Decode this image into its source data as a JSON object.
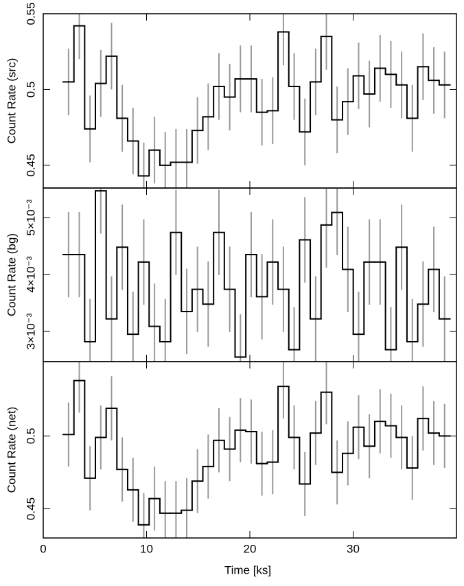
{
  "chart_data": [
    {
      "type": "step",
      "ylabel": "Count Rate (src)",
      "color": "#000000",
      "error_color": "#999999",
      "x": [
        2.45,
        3.49,
        4.53,
        5.57,
        6.61,
        7.65,
        8.69,
        9.73,
        10.77,
        11.81,
        12.85,
        13.89,
        14.93,
        15.97,
        17.01,
        18.05,
        19.09,
        20.13,
        21.17,
        22.21,
        23.25,
        24.29,
        25.33,
        26.37,
        27.41,
        28.45,
        29.49,
        30.53,
        31.57,
        32.61,
        33.65,
        34.69,
        35.73,
        36.77,
        37.81,
        38.85
      ],
      "values": [
        0.505,
        0.542,
        0.474,
        0.504,
        0.522,
        0.481,
        0.466,
        0.443,
        0.46,
        0.45,
        0.452,
        0.452,
        0.473,
        0.482,
        0.502,
        0.495,
        0.507,
        0.507,
        0.485,
        0.486,
        0.538,
        0.502,
        0.472,
        0.505,
        0.535,
        0.48,
        0.492,
        0.509,
        0.497,
        0.514,
        0.51,
        0.503,
        0.481,
        0.515,
        0.506,
        0.503
      ],
      "errors": [
        0.022,
        0.022,
        0.022,
        0.022,
        0.022,
        0.022,
        0.022,
        0.022,
        0.022,
        0.022,
        0.022,
        0.022,
        0.022,
        0.022,
        0.022,
        0.022,
        0.022,
        0.022,
        0.022,
        0.022,
        0.022,
        0.022,
        0.022,
        0.022,
        0.022,
        0.022,
        0.022,
        0.022,
        0.022,
        0.022,
        0.022,
        0.022,
        0.022,
        0.022,
        0.022,
        0.022
      ],
      "xlim": [
        0,
        40
      ],
      "xticks": [
        0,
        10,
        20,
        30
      ],
      "ylim": [
        0.435,
        0.55
      ],
      "yticks": [
        0.45,
        0.5,
        0.55
      ]
    },
    {
      "type": "step",
      "ylabel": "Count Rate (bg)",
      "color": "#000000",
      "error_color": "#999999",
      "x": [
        2.45,
        3.49,
        4.53,
        5.57,
        6.61,
        7.65,
        8.69,
        9.73,
        10.77,
        11.81,
        12.85,
        13.89,
        14.93,
        15.97,
        17.01,
        18.05,
        19.09,
        20.13,
        21.17,
        22.21,
        23.25,
        24.29,
        25.33,
        26.37,
        27.41,
        28.45,
        29.49,
        30.53,
        31.57,
        32.61,
        33.65,
        34.69,
        35.73,
        36.77,
        37.81,
        38.85
      ],
      "values": [
        0.00435,
        0.00435,
        0.00282,
        0.00547,
        0.00322,
        0.00448,
        0.00295,
        0.00422,
        0.00309,
        0.00282,
        0.00474,
        0.00335,
        0.00374,
        0.00348,
        0.00474,
        0.00374,
        0.00255,
        0.00435,
        0.00361,
        0.00422,
        0.00374,
        0.00268,
        0.00461,
        0.00322,
        0.00487,
        0.00509,
        0.00409,
        0.00295,
        0.00422,
        0.00422,
        0.00268,
        0.00448,
        0.00282,
        0.00348,
        0.00409,
        0.00322
      ],
      "errors": [
        0.00075,
        0.00075,
        0.00075,
        0.00075,
        0.00075,
        0.00075,
        0.00075,
        0.00075,
        0.00075,
        0.00075,
        0.00075,
        0.00075,
        0.00075,
        0.00075,
        0.00075,
        0.00075,
        0.00075,
        0.00075,
        0.00075,
        0.00075,
        0.00075,
        0.00075,
        0.00075,
        0.00075,
        0.00075,
        0.00075,
        0.00075,
        0.00075,
        0.00075,
        0.00075,
        0.00075,
        0.00075,
        0.00075,
        0.00075,
        0.00075,
        0.00075
      ],
      "xlim": [
        0,
        40
      ],
      "xticks": [
        0,
        10,
        20,
        30
      ],
      "ylim": [
        0.00247,
        0.00552
      ],
      "yticks": [
        {
          "value": 0.003,
          "label": "3×10⁻³"
        },
        {
          "value": 0.004,
          "label": "4×10⁻³"
        },
        {
          "value": 0.005,
          "label": "5×10⁻³"
        }
      ]
    },
    {
      "type": "step",
      "ylabel": "Count Rate (net)",
      "xlabel": "Time [ks]",
      "color": "#000000",
      "error_color": "#999999",
      "x": [
        2.45,
        3.49,
        4.53,
        5.57,
        6.61,
        7.65,
        8.69,
        9.73,
        10.77,
        11.81,
        12.85,
        13.89,
        14.93,
        15.97,
        17.01,
        18.05,
        19.09,
        20.13,
        21.17,
        22.21,
        23.25,
        24.29,
        25.33,
        26.37,
        27.41,
        28.45,
        29.49,
        30.53,
        31.57,
        32.61,
        33.65,
        34.69,
        35.73,
        36.77,
        37.81,
        38.85
      ],
      "values": [
        0.501,
        0.538,
        0.471,
        0.499,
        0.519,
        0.477,
        0.463,
        0.439,
        0.457,
        0.447,
        0.447,
        0.449,
        0.469,
        0.479,
        0.497,
        0.491,
        0.504,
        0.503,
        0.481,
        0.482,
        0.534,
        0.499,
        0.467,
        0.502,
        0.53,
        0.475,
        0.488,
        0.506,
        0.493,
        0.51,
        0.507,
        0.499,
        0.478,
        0.512,
        0.502,
        0.5
      ],
      "errors": [
        0.022,
        0.022,
        0.022,
        0.022,
        0.022,
        0.022,
        0.022,
        0.022,
        0.022,
        0.022,
        0.022,
        0.022,
        0.022,
        0.022,
        0.022,
        0.022,
        0.022,
        0.022,
        0.022,
        0.022,
        0.022,
        0.022,
        0.022,
        0.022,
        0.022,
        0.022,
        0.022,
        0.022,
        0.022,
        0.022,
        0.022,
        0.022,
        0.022,
        0.022,
        0.022,
        0.022
      ],
      "xlim": [
        0,
        40
      ],
      "xticks": [
        0,
        10,
        20,
        30
      ],
      "ylim": [
        0.43,
        0.551
      ],
      "yticks": [
        0.45,
        0.5
      ]
    }
  ]
}
